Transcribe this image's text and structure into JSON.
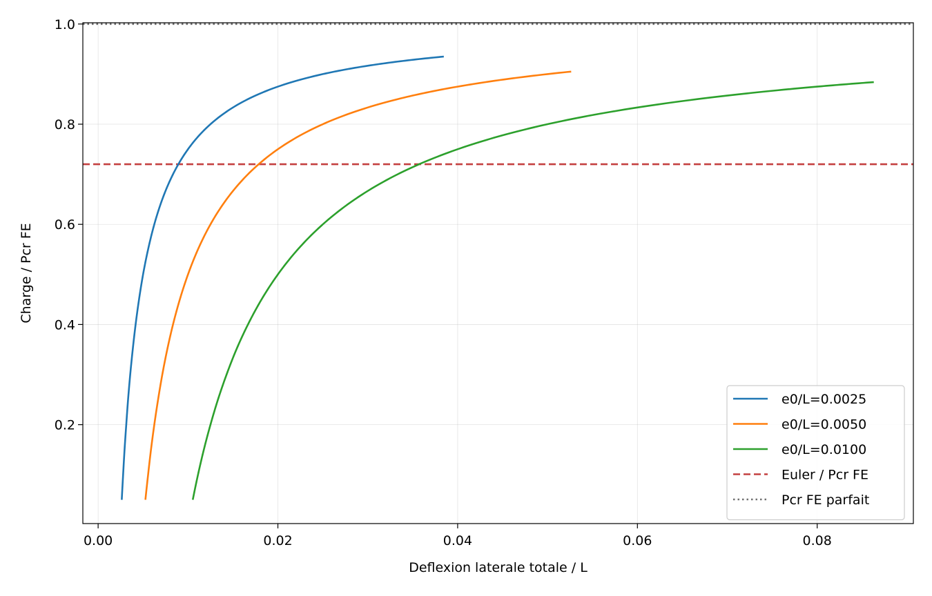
{
  "chart_data": {
    "type": "line",
    "title": "",
    "xlabel": "Deflexion laterale totale / L",
    "ylabel": "Charge / Pcr FE",
    "xlim": [
      -0.0017,
      0.0907
    ],
    "ylim": [
      0.0025,
      1.0025
    ],
    "grid": true,
    "legend_position": "lower-right",
    "x_ticks": [
      {
        "value": 0.0,
        "label": "0.00"
      },
      {
        "value": 0.02,
        "label": "0.02"
      },
      {
        "value": 0.04,
        "label": "0.04"
      },
      {
        "value": 0.06,
        "label": "0.06"
      },
      {
        "value": 0.08,
        "label": "0.08"
      }
    ],
    "y_ticks": [
      {
        "value": 0.2,
        "label": "0.2"
      },
      {
        "value": 0.4,
        "label": "0.4"
      },
      {
        "value": 0.6,
        "label": "0.6"
      },
      {
        "value": 0.8,
        "label": "0.8"
      },
      {
        "value": 1.0,
        "label": "1.0"
      }
    ],
    "series": [
      {
        "name": "e0/L=0.0025",
        "color": "#1f77b4",
        "style": "solid",
        "x": [
          0.00263,
          0.00278,
          0.00294,
          0.00313,
          0.00333,
          0.00357,
          0.00385,
          0.00417,
          0.00455,
          0.005,
          0.00556,
          0.00625,
          0.00714,
          0.00833,
          0.01,
          0.0125,
          0.01667,
          0.025,
          0.03125,
          0.03846
        ],
        "y": [
          0.05,
          0.1,
          0.15,
          0.2,
          0.25,
          0.3,
          0.35,
          0.4,
          0.45,
          0.5,
          0.55,
          0.6,
          0.65,
          0.7,
          0.75,
          0.8,
          0.85,
          0.9,
          0.92,
          0.935
        ]
      },
      {
        "name": "e0/L=0.0050",
        "color": "#ff7f0e",
        "style": "solid",
        "x": [
          0.00526,
          0.00556,
          0.00588,
          0.00625,
          0.00667,
          0.00714,
          0.00769,
          0.00833,
          0.00909,
          0.01,
          0.01111,
          0.0125,
          0.01429,
          0.01667,
          0.02,
          0.025,
          0.03333,
          0.04348,
          0.05263
        ],
        "y": [
          0.05,
          0.1,
          0.15,
          0.2,
          0.25,
          0.3,
          0.35,
          0.4,
          0.45,
          0.5,
          0.55,
          0.6,
          0.65,
          0.7,
          0.75,
          0.8,
          0.85,
          0.885,
          0.905
        ]
      },
      {
        "name": "e0/L=0.0100",
        "color": "#2ca02c",
        "style": "solid",
        "x": [
          0.01053,
          0.01111,
          0.01176,
          0.0125,
          0.01333,
          0.01429,
          0.01538,
          0.01667,
          0.01818,
          0.02,
          0.02222,
          0.025,
          0.02857,
          0.03333,
          0.04,
          0.05,
          0.06667,
          0.08,
          0.0863
        ],
        "y": [
          0.05,
          0.1,
          0.15,
          0.2,
          0.25,
          0.3,
          0.35,
          0.4,
          0.45,
          0.5,
          0.55,
          0.6,
          0.65,
          0.7,
          0.75,
          0.8,
          0.85,
          0.875,
          0.884
        ]
      }
    ],
    "reference_lines": [
      {
        "name": "Euler / Pcr FE",
        "color": "#c44040",
        "style": "dashed",
        "y": 0.72
      },
      {
        "name": "Pcr FE parfait",
        "color": "#707070",
        "style": "dotted",
        "y": 1.0
      }
    ]
  }
}
